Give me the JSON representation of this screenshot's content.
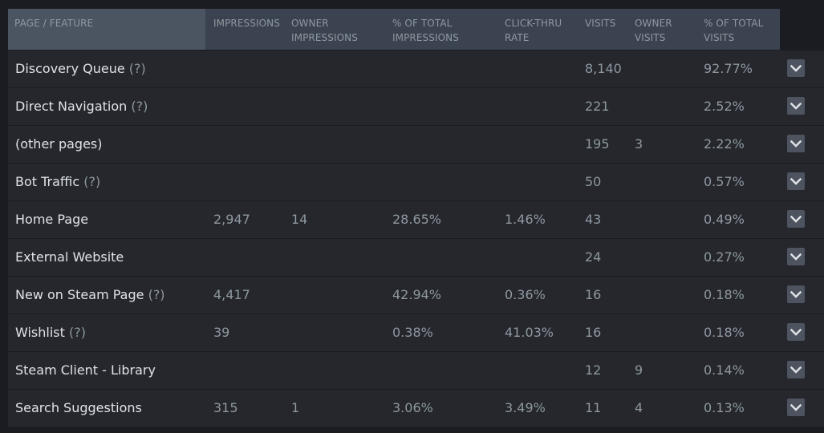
{
  "header": {
    "page_feature": "PAGE / FEATURE",
    "impressions": "IMPRESSIONS",
    "owner_impressions": "OWNER\nIMPRESSIONS",
    "pct_total_impressions": "% OF TOTAL\nIMPRESSIONS",
    "click_thru_rate": "CLICK-THRU\nRATE",
    "visits": "VISITS",
    "owner_visits": "OWNER\nVISITS",
    "pct_total_visits": "% OF TOTAL\nVISITS"
  },
  "icons": {
    "expand": "chevron-down-icon"
  },
  "colors": {
    "header_bg": "#3b4350",
    "row_bg": "#25272d",
    "text_primary": "#dfe3e6",
    "text_secondary": "#8f98a0"
  },
  "rows": [
    {
      "name": "Discovery Queue",
      "help": " (?)",
      "impressions": "",
      "owner_impressions": "",
      "pct_impressions": "",
      "ctr": "",
      "visits": "8,140",
      "owner_visits": "",
      "pct_visits": "92.77%"
    },
    {
      "name": "Direct Navigation",
      "help": " (?)",
      "impressions": "",
      "owner_impressions": "",
      "pct_impressions": "",
      "ctr": "",
      "visits": "221",
      "owner_visits": "",
      "pct_visits": "2.52%"
    },
    {
      "name": "(other pages)",
      "help": "",
      "impressions": "",
      "owner_impressions": "",
      "pct_impressions": "",
      "ctr": "",
      "visits": "195",
      "owner_visits": "3",
      "pct_visits": "2.22%"
    },
    {
      "name": "Bot Traffic",
      "help": " (?)",
      "impressions": "",
      "owner_impressions": "",
      "pct_impressions": "",
      "ctr": "",
      "visits": "50",
      "owner_visits": "",
      "pct_visits": "0.57%"
    },
    {
      "name": "Home Page",
      "help": "",
      "impressions": "2,947",
      "owner_impressions": "14",
      "pct_impressions": "28.65%",
      "ctr": "1.46%",
      "visits": "43",
      "owner_visits": "",
      "pct_visits": "0.49%"
    },
    {
      "name": "External Website",
      "help": "",
      "impressions": "",
      "owner_impressions": "",
      "pct_impressions": "",
      "ctr": "",
      "visits": "24",
      "owner_visits": "",
      "pct_visits": "0.27%"
    },
    {
      "name": "New on Steam Page",
      "help": " (?)",
      "impressions": "4,417",
      "owner_impressions": "",
      "pct_impressions": "42.94%",
      "ctr": "0.36%",
      "visits": "16",
      "owner_visits": "",
      "pct_visits": "0.18%"
    },
    {
      "name": "Wishlist",
      "help": " (?)",
      "impressions": "39",
      "owner_impressions": "",
      "pct_impressions": "0.38%",
      "ctr": "41.03%",
      "visits": "16",
      "owner_visits": "",
      "pct_visits": "0.18%"
    },
    {
      "name": "Steam Client - Library",
      "help": "",
      "impressions": "",
      "owner_impressions": "",
      "pct_impressions": "",
      "ctr": "",
      "visits": "12",
      "owner_visits": "9",
      "pct_visits": "0.14%"
    },
    {
      "name": "Search Suggestions",
      "help": "",
      "impressions": "315",
      "owner_impressions": "1",
      "pct_impressions": "3.06%",
      "ctr": "3.49%",
      "visits": "11",
      "owner_visits": "4",
      "pct_visits": "0.13%"
    }
  ]
}
